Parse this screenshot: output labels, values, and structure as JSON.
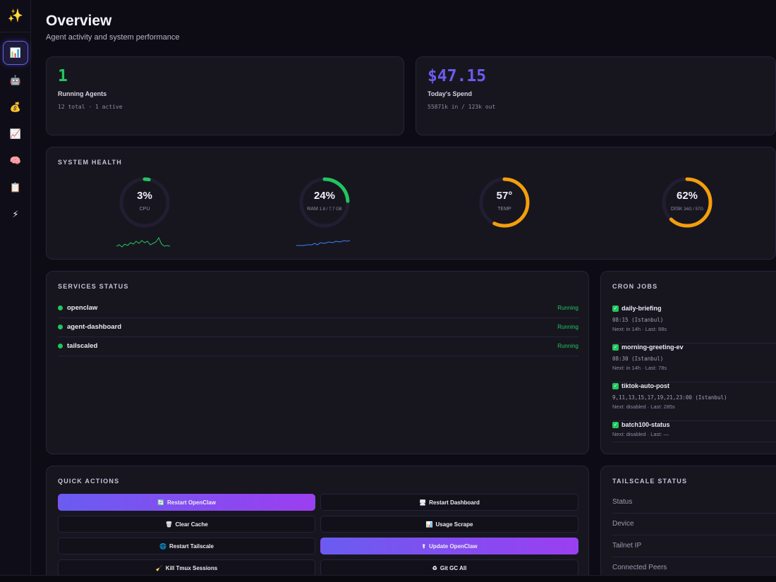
{
  "sidebar": {
    "logo_icon": "sparkles-icon",
    "items": [
      {
        "name": "overview",
        "icon": "bar-chart-icon",
        "glyph": "📊",
        "active": true
      },
      {
        "name": "agents",
        "icon": "robot-icon",
        "glyph": "🤖",
        "active": false
      },
      {
        "name": "spend",
        "icon": "money-bag-icon",
        "glyph": "💰",
        "active": false
      },
      {
        "name": "analytics",
        "icon": "line-chart-icon",
        "glyph": "📈",
        "active": false
      },
      {
        "name": "memory",
        "icon": "brain-icon",
        "glyph": "🧠",
        "active": false
      },
      {
        "name": "logs",
        "icon": "clipboard-icon",
        "glyph": "📋",
        "active": false
      },
      {
        "name": "actions",
        "icon": "lightning-icon",
        "glyph": "⚡",
        "active": false
      }
    ]
  },
  "header": {
    "title": "Overview",
    "subtitle": "Agent activity and system performance"
  },
  "stats": {
    "agents": {
      "value": "1",
      "label": "Running Agents",
      "sub": "12 total · 1 active",
      "color": "#22c55e"
    },
    "spend": {
      "value": "$47.15",
      "label": "Today's Spend",
      "sub": "55871k in / 123k out",
      "color": "#6a5cf0"
    }
  },
  "system_health": {
    "title": "SYSTEM HEALTH",
    "gauges": [
      {
        "name": "cpu",
        "value": "3%",
        "label": "CPU",
        "detail": "",
        "fraction": 0.03,
        "color": "#22c55e"
      },
      {
        "name": "ram",
        "value": "24%",
        "label": "RAM",
        "detail": "1.8 / 7.7 GB",
        "fraction": 0.24,
        "color": "#22c55e"
      },
      {
        "name": "temp",
        "value": "57°",
        "label": "TEMP",
        "detail": "",
        "fraction": 0.57,
        "color": "#f59e0b"
      },
      {
        "name": "disk",
        "value": "62%",
        "label": "DISK",
        "detail": "34G / 57G",
        "fraction": 0.62,
        "color": "#f59e0b"
      }
    ],
    "cpu_spark_color": "#22c55e",
    "ram_spark_color": "#3b82f6"
  },
  "services": {
    "title": "SERVICES STATUS",
    "items": [
      {
        "name": "openclaw",
        "status": "Running"
      },
      {
        "name": "agent-dashboard",
        "status": "Running"
      },
      {
        "name": "tailscaled",
        "status": "Running"
      }
    ]
  },
  "cron": {
    "title": "CRON JOBS",
    "items": [
      {
        "name": "daily-briefing",
        "schedule": "08:15 (Istanbul)",
        "next": "Next: in 14h · Last: 88s"
      },
      {
        "name": "morning-greeting-ev",
        "schedule": "08:30 (Istanbul)",
        "next": "Next: in 14h · Last: 78s"
      },
      {
        "name": "tiktok-auto-post",
        "schedule": "9,11,13,15,17,19,21,23:00 (Istanbul)",
        "next": "Next: disabled · Last: 285s"
      },
      {
        "name": "batch100-status",
        "schedule": "",
        "next": "Next: disabled · Last: —"
      }
    ]
  },
  "quick_actions": {
    "title": "QUICK ACTIONS",
    "buttons": [
      {
        "label": "Restart OpenClaw",
        "icon": "refresh-icon",
        "glyph": "🔄",
        "primary": true
      },
      {
        "label": "Restart Dashboard",
        "icon": "monitor-icon",
        "glyph": "🖥",
        "primary": false
      },
      {
        "label": "Clear Cache",
        "icon": "trash-icon",
        "glyph": "🗑",
        "primary": false
      },
      {
        "label": "Usage Scrape",
        "icon": "bar-chart-icon",
        "glyph": "📊",
        "primary": false
      },
      {
        "label": "Restart Tailscale",
        "icon": "globe-icon",
        "glyph": "🌐",
        "primary": false
      },
      {
        "label": "Update OpenClaw",
        "icon": "up-arrow-icon",
        "glyph": "⬆",
        "primary": true
      },
      {
        "label": "Kill Tmux Sessions",
        "icon": "broom-icon",
        "glyph": "🧹",
        "primary": false
      },
      {
        "label": "Git GC All",
        "icon": "recycle-icon",
        "glyph": "♻",
        "primary": false
      }
    ]
  },
  "tailscale": {
    "title": "TAILSCALE STATUS",
    "rows": [
      {
        "label": "Status"
      },
      {
        "label": "Device"
      },
      {
        "label": "Tailnet IP"
      },
      {
        "label": "Connected Peers"
      }
    ]
  }
}
